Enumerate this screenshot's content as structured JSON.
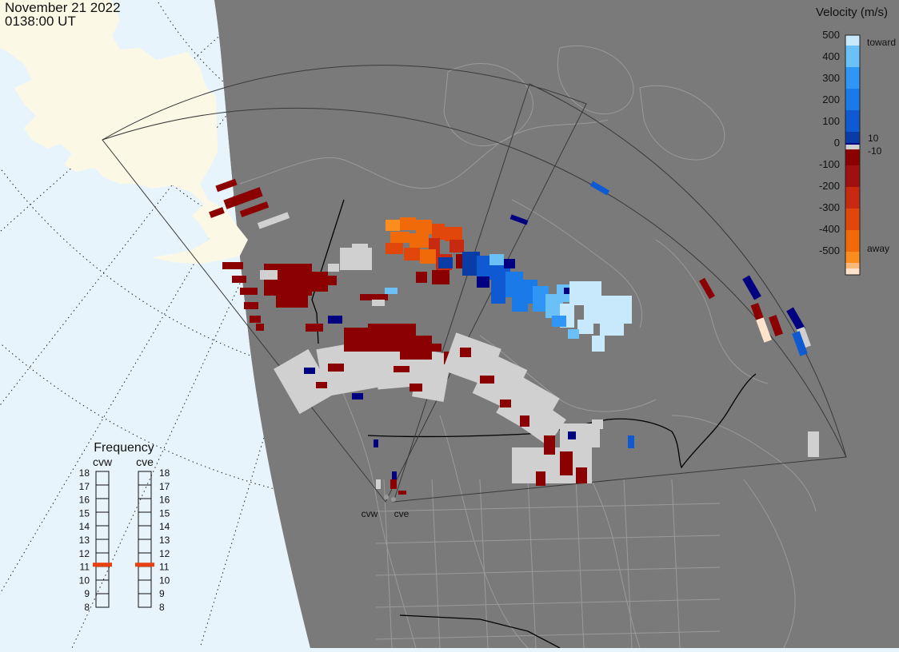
{
  "header": {
    "date": "November 21 2022",
    "time": "0138:00 UT"
  },
  "legend": {
    "title": "Velocity (m/s)",
    "ticks": [
      "500",
      "400",
      "300",
      "200",
      "100",
      "0",
      "-100",
      "-200",
      "-300",
      "-400",
      "-500"
    ],
    "label_toward": "toward",
    "label_away": "away",
    "label_pos": "10",
    "label_neg": "-10",
    "colors": [
      "#fde2cc",
      "#fcb87a",
      "#fb8c20",
      "#f06a0a",
      "#e1460b",
      "#c72a10",
      "#a01010",
      "#8b0000",
      "#d0d0d0",
      "#000080",
      "#0a3ca8",
      "#0f5ad2",
      "#1a7ae8",
      "#2f96f5",
      "#6cc0f8",
      "#c8e8fb"
    ]
  },
  "frequency": {
    "title": "Frequency",
    "radars": [
      {
        "name": "cvw",
        "level": 11
      },
      {
        "name": "cve",
        "level": 11
      }
    ],
    "levels": [
      "18",
      "17",
      "16",
      "15",
      "14",
      "13",
      "12",
      "11",
      "10",
      "9",
      "8"
    ],
    "marker_color": "#e84010"
  },
  "map": {
    "stations": [
      "cvw",
      "cve"
    ],
    "ocean_color": "#e8f4fc",
    "land_color": "#fcf8e6",
    "night_color": "#7a7a7a"
  }
}
